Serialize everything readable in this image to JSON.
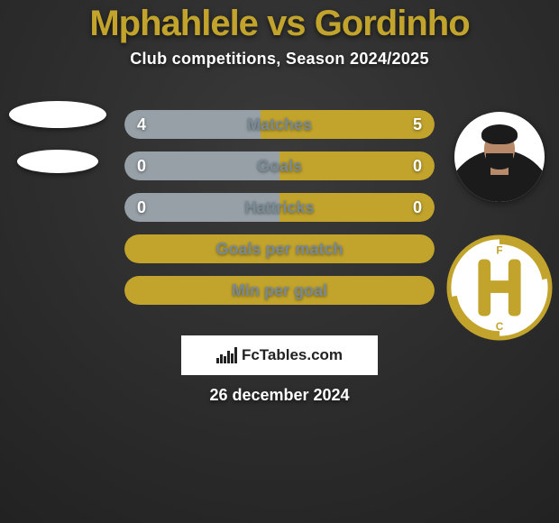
{
  "title": {
    "player_a": "Mphahlele",
    "vs": "vs",
    "player_b": "Gordinho",
    "color_a": "#c2a42d",
    "color_b": "#c2a42d",
    "color_vs": "#c2a42d",
    "fontsize": 40
  },
  "subtitle": "Club competitions, Season 2024/2025",
  "colors": {
    "accent_gold": "#c2a42d",
    "neutral_grey": "#96a0a6",
    "label_grey": "#7a8a94",
    "bg_dark": "#2b2b2b",
    "white": "#ffffff"
  },
  "bars": [
    {
      "label": "Matches",
      "left_value": "4",
      "right_value": "5",
      "left_pct": 44,
      "right_pct": 56,
      "left_fill": "#96a0a6",
      "right_fill": "#c2a42d"
    },
    {
      "label": "Goals",
      "left_value": "0",
      "right_value": "0",
      "left_pct": 50,
      "right_pct": 50,
      "left_fill": "#96a0a6",
      "right_fill": "#c2a42d"
    },
    {
      "label": "Hattricks",
      "left_value": "0",
      "right_value": "0",
      "left_pct": 50,
      "right_pct": 50,
      "left_fill": "#96a0a6",
      "right_fill": "#c2a42d"
    },
    {
      "label": "Goals per match",
      "left_value": "",
      "right_value": "",
      "left_pct": 100,
      "right_pct": 0,
      "left_fill": "#c2a42d",
      "right_fill": "#c2a42d"
    },
    {
      "label": "Min per goal",
      "left_value": "",
      "right_value": "",
      "left_pct": 100,
      "right_pct": 0,
      "left_fill": "#c2a42d",
      "right_fill": "#c2a42d"
    }
  ],
  "watermark": "FcTables.com",
  "date": "26 december 2024",
  "avatars": {
    "left_top_has_image": false,
    "left_bottom_has_image": false,
    "right_top_type": "player",
    "right_bottom_type": "crest",
    "crest_stroke": "#c2a42d",
    "crest_bg": "#ffffff"
  }
}
